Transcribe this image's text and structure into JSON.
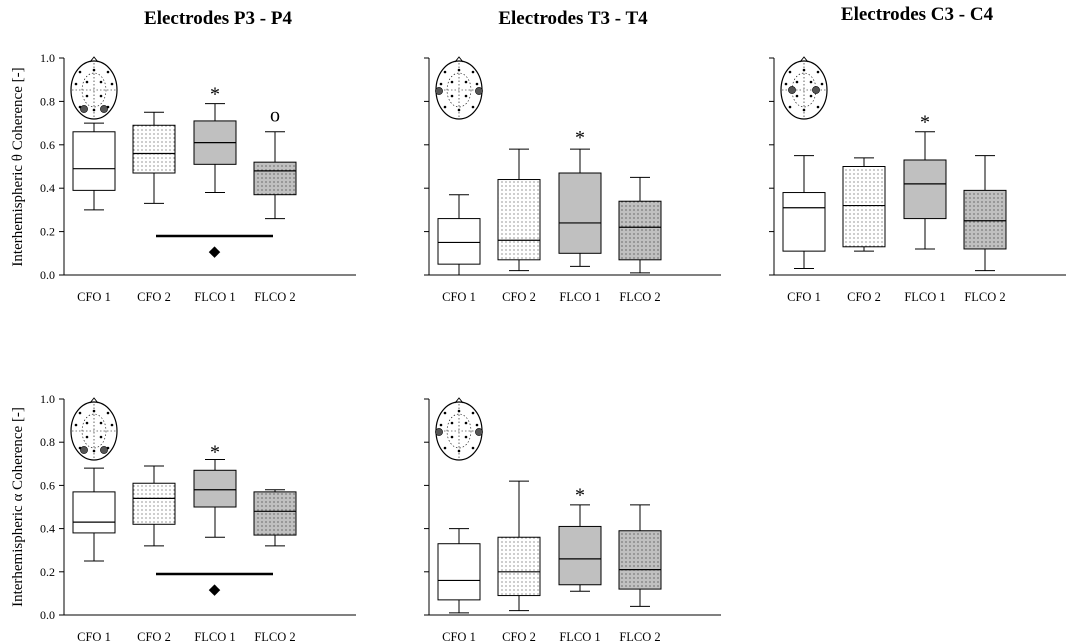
{
  "figure": {
    "titles": [
      "Electrodes P3 - P4",
      "Electrodes T3 - T4",
      "Electrodes C3 - C4"
    ],
    "ylabels": [
      "Interhemispheric θ Coherence [-]",
      "Interhemispheric α Coherence [-]"
    ],
    "legend_symbols": {
      "star": "*",
      "circle": "o",
      "diamond": "◆"
    },
    "colors": {
      "axis": "#000000",
      "white_fill": "#ffffff",
      "gray_fill": "#c0c0c0",
      "dot_color": "#555555"
    }
  },
  "chart_data": [
    {
      "type": "box",
      "id": "theta-p3p4",
      "row": 0,
      "col": 0,
      "title": "Electrodes P3 - P4",
      "ylabel": "Interhemispheric θ Coherence [-]",
      "ylim": [
        0,
        1
      ],
      "yticks": [
        "0.0",
        "0.2",
        "0.4",
        "0.6",
        "0.8",
        "1.0"
      ],
      "categories": [
        "CFO 1",
        "CFO 2",
        "FLCO 1",
        "FLCO 2"
      ],
      "fills": [
        "white",
        "dotted-white",
        "gray",
        "dotted-gray"
      ],
      "boxes": [
        {
          "min": 0.3,
          "q1": 0.39,
          "median": 0.49,
          "q3": 0.66,
          "max": 0.7
        },
        {
          "min": 0.33,
          "q1": 0.47,
          "median": 0.56,
          "q3": 0.69,
          "max": 0.75
        },
        {
          "min": 0.38,
          "q1": 0.51,
          "median": 0.61,
          "q3": 0.71,
          "max": 0.79
        },
        {
          "min": 0.26,
          "q1": 0.37,
          "median": 0.48,
          "q3": 0.52,
          "max": 0.66
        }
      ],
      "annotations": [
        {
          "symbol": "*",
          "category": 2,
          "y": 0.86
        },
        {
          "symbol": "o",
          "category": 3,
          "y": 0.73
        }
      ],
      "bracket": {
        "from": 1,
        "to": 3,
        "y": 0.18,
        "symbol": "◆",
        "symbol_y": 0.11
      },
      "head": "sides-back"
    },
    {
      "type": "box",
      "id": "theta-t3t4",
      "row": 0,
      "col": 1,
      "title": "Electrodes T3 - T4",
      "ylim": [
        0,
        1
      ],
      "categories": [
        "CFO 1",
        "CFO 2",
        "FLCO 1",
        "FLCO 2"
      ],
      "fills": [
        "white",
        "dotted-white",
        "gray",
        "dotted-gray"
      ],
      "boxes": [
        {
          "min": 0.0,
          "q1": 0.05,
          "median": 0.15,
          "q3": 0.26,
          "max": 0.37
        },
        {
          "min": 0.02,
          "q1": 0.07,
          "median": 0.16,
          "q3": 0.44,
          "max": 0.58
        },
        {
          "min": 0.04,
          "q1": 0.1,
          "median": 0.24,
          "q3": 0.47,
          "max": 0.58
        },
        {
          "min": 0.01,
          "q1": 0.07,
          "median": 0.22,
          "q3": 0.34,
          "max": 0.45
        }
      ],
      "annotations": [
        {
          "symbol": "*",
          "category": 2,
          "y": 0.66
        }
      ],
      "head": "sides"
    },
    {
      "type": "box",
      "id": "theta-c3c4",
      "row": 0,
      "col": 2,
      "title": "Electrodes C3 - C4",
      "ylim": [
        0,
        1
      ],
      "categories": [
        "CFO 1",
        "CFO 2",
        "FLCO 1",
        "FLCO 2"
      ],
      "fills": [
        "white",
        "dotted-white",
        "gray",
        "dotted-gray"
      ],
      "boxes": [
        {
          "min": 0.03,
          "q1": 0.11,
          "median": 0.31,
          "q3": 0.38,
          "max": 0.55
        },
        {
          "min": 0.11,
          "q1": 0.13,
          "median": 0.32,
          "q3": 0.5,
          "max": 0.54
        },
        {
          "min": 0.12,
          "q1": 0.26,
          "median": 0.42,
          "q3": 0.53,
          "max": 0.66
        },
        {
          "min": 0.02,
          "q1": 0.12,
          "median": 0.25,
          "q3": 0.39,
          "max": 0.55
        }
      ],
      "annotations": [
        {
          "symbol": "*",
          "category": 2,
          "y": 0.73
        }
      ],
      "head": "center"
    },
    {
      "type": "box",
      "id": "alpha-p3p4",
      "row": 1,
      "col": 0,
      "title": "",
      "ylabel": "Interhemispheric α Coherence [-]",
      "ylim": [
        0,
        1
      ],
      "yticks": [
        "0.0",
        "0.2",
        "0.4",
        "0.6",
        "0.8",
        "1.0"
      ],
      "categories": [
        "CFO 1",
        "CFO 2",
        "FLCO 1",
        "FLCO 2"
      ],
      "fills": [
        "white",
        "dotted-white",
        "gray",
        "dotted-gray"
      ],
      "boxes": [
        {
          "min": 0.25,
          "q1": 0.38,
          "median": 0.43,
          "q3": 0.57,
          "max": 0.68
        },
        {
          "min": 0.32,
          "q1": 0.42,
          "median": 0.54,
          "q3": 0.61,
          "max": 0.69
        },
        {
          "min": 0.36,
          "q1": 0.5,
          "median": 0.58,
          "q3": 0.67,
          "max": 0.72
        },
        {
          "min": 0.32,
          "q1": 0.37,
          "median": 0.48,
          "q3": 0.57,
          "max": 0.58
        }
      ],
      "annotations": [
        {
          "symbol": "*",
          "category": 2,
          "y": 0.78
        }
      ],
      "bracket": {
        "from": 1,
        "to": 3,
        "y": 0.19,
        "symbol": "◆",
        "symbol_y": 0.12
      },
      "head": "sides-back"
    },
    {
      "type": "box",
      "id": "alpha-t3t4",
      "row": 1,
      "col": 1,
      "title": "",
      "ylim": [
        0,
        1
      ],
      "categories": [
        "CFO 1",
        "CFO 2",
        "FLCO 1",
        "FLCO 2"
      ],
      "fills": [
        "white",
        "dotted-white",
        "gray",
        "dotted-gray"
      ],
      "boxes": [
        {
          "min": 0.01,
          "q1": 0.07,
          "median": 0.16,
          "q3": 0.33,
          "max": 0.4
        },
        {
          "min": 0.02,
          "q1": 0.09,
          "median": 0.2,
          "q3": 0.36,
          "max": 0.62
        },
        {
          "min": 0.11,
          "q1": 0.14,
          "median": 0.26,
          "q3": 0.41,
          "max": 0.51
        },
        {
          "min": 0.04,
          "q1": 0.12,
          "median": 0.21,
          "q3": 0.39,
          "max": 0.51
        }
      ],
      "annotations": [
        {
          "symbol": "*",
          "category": 2,
          "y": 0.58
        }
      ],
      "head": "sides"
    }
  ]
}
